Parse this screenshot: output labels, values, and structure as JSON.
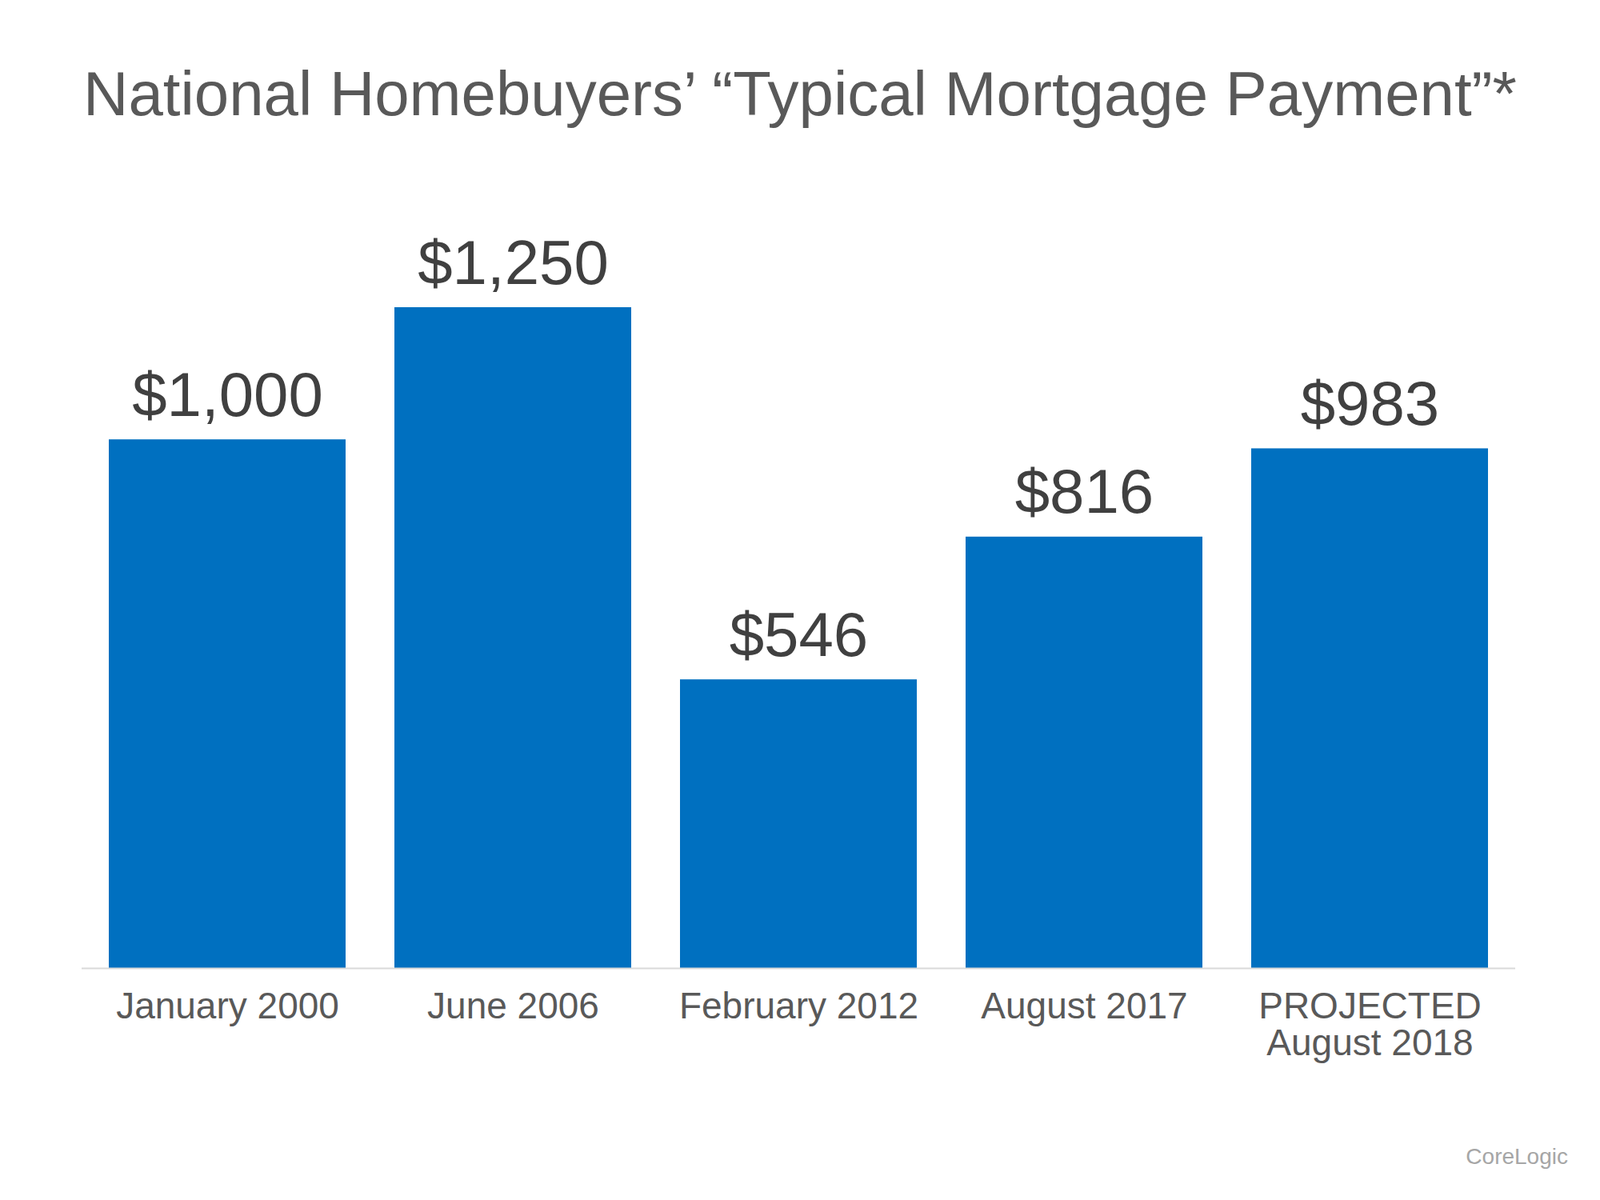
{
  "chart_data": {
    "type": "bar",
    "title": "National Homebuyers’ “Typical Mortgage Payment”*",
    "categories": [
      "January 2000",
      "June 2006",
      "February 2012",
      "August 2017",
      "PROJECTED\nAugust 2018"
    ],
    "values": [
      1000,
      1250,
      546,
      816,
      983
    ],
    "value_labels": [
      "$1,000",
      "$1,250",
      "$546",
      "$816",
      "$983"
    ],
    "color": "#0070c0",
    "ylim": [
      0,
      1250
    ],
    "data_labels": true,
    "tick_labels": "x",
    "grid": false,
    "annotations": [
      "CoreLogic"
    ]
  }
}
